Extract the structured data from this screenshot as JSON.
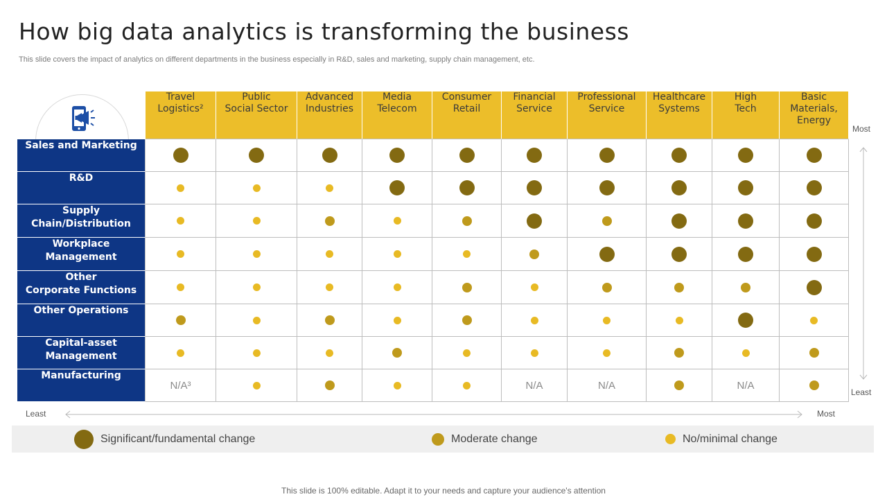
{
  "title": "How big data analytics is transforming the business",
  "subtitle": "This slide covers the impact of analytics on different departments in the business especially in R&D, sales and marketing, supply chain management, etc.",
  "header_icon": "mobile-megaphone-icon",
  "colors": {
    "header_bg": "#ecbe2a",
    "row_header_bg": "#0e3685",
    "significant": "#836a12",
    "moderate": "#bf9a1c",
    "minimal": "#e8ba24"
  },
  "columns": [
    "Travel\nLogistics²",
    "Public\nSocial Sector",
    "Advanced\nIndustries",
    "Media\nTelecom",
    "Consumer\nRetail",
    "Financial\nService",
    "Professional\nService",
    "Healthcare\nSystems",
    "High\nTech",
    "Basic\nMaterials,\nEnergy"
  ],
  "rows": [
    {
      "label": "Sales and Marketing",
      "cells": [
        "sig",
        "sig",
        "sig",
        "sig",
        "sig",
        "sig",
        "sig",
        "sig",
        "sig",
        "sig"
      ]
    },
    {
      "label": "R&D",
      "cells": [
        "min",
        "min",
        "min",
        "sig",
        "sig",
        "sig",
        "sig",
        "sig",
        "sig",
        "sig"
      ]
    },
    {
      "label": "Supply\nChain/Distribution",
      "cells": [
        "min",
        "min",
        "mod",
        "min",
        "mod",
        "sig",
        "mod",
        "sig",
        "sig",
        "sig"
      ]
    },
    {
      "label": "Workplace\nManagement",
      "cells": [
        "min",
        "min",
        "min",
        "min",
        "min",
        "mod",
        "sig",
        "sig",
        "sig",
        "sig"
      ]
    },
    {
      "label": "Other\nCorporate Functions",
      "cells": [
        "min",
        "min",
        "min",
        "min",
        "mod",
        "min",
        "mod",
        "mod",
        "mod",
        "sig"
      ]
    },
    {
      "label": "Other Operations",
      "cells": [
        "mod",
        "min",
        "mod",
        "min",
        "mod",
        "min",
        "min",
        "min",
        "sig",
        "min"
      ]
    },
    {
      "label": "Capital-asset\nManagement",
      "cells": [
        "min",
        "min",
        "min",
        "mod",
        "min",
        "min",
        "min",
        "mod",
        "min",
        "mod"
      ]
    },
    {
      "label": "Manufacturing",
      "cells": [
        "N/A³",
        "min",
        "mod",
        "min",
        "min",
        "N/A",
        "N/A",
        "mod",
        "N/A",
        "mod"
      ]
    }
  ],
  "axis": {
    "vertical_top": "Most",
    "vertical_bottom": "Least",
    "horizontal_left": "Least",
    "horizontal_right": "Most"
  },
  "legend": [
    {
      "key": "sig",
      "label": "Significant/fundamental  change"
    },
    {
      "key": "mod",
      "label": "Moderate change"
    },
    {
      "key": "min",
      "label": "No/minimal change"
    }
  ],
  "footer": "This slide is 100% editable. Adapt it to your needs and capture your audience's attention"
}
